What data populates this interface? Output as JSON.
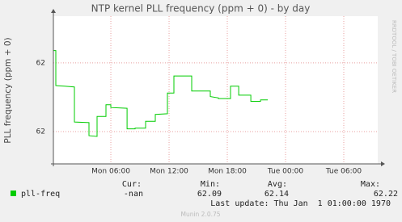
{
  "chart_data": {
    "type": "line",
    "title": "NTP kernel PLL frequency (ppm + 0) - by day",
    "y_label": "PLL frequency (ppm + 0)",
    "side_label": "RRDTOOL / TOBI OETIKER",
    "x": [
      0.08,
      0.33,
      0.33,
      1.25,
      2.25,
      2.25,
      3.75,
      3.75,
      4.58,
      4.58,
      5.5,
      5.5,
      6,
      6,
      7.67,
      7.67,
      8.5,
      8.5,
      9.58,
      9.58,
      10.58,
      10.58,
      11.83,
      11.83,
      12.5,
      12.5,
      14.33,
      14.33,
      16.25,
      16.25,
      17.08,
      17.08,
      18.33,
      18.33,
      19.17,
      19.17,
      20.42,
      20.42,
      21.42,
      21.42,
      22.17
    ],
    "series": [
      {
        "name": "pll-freq",
        "color": "#00cc00",
        "values": [
          62.218,
          62.218,
          62.167,
          62.166,
          62.165,
          62.114,
          62.113,
          62.094,
          62.093,
          62.122,
          62.122,
          62.139,
          62.139,
          62.135,
          62.134,
          62.104,
          62.104,
          62.105,
          62.105,
          62.115,
          62.115,
          62.125,
          62.126,
          62.156,
          62.156,
          62.181,
          62.181,
          62.159,
          62.159,
          62.151,
          62.149,
          62.148,
          62.148,
          62.166,
          62.166,
          62.153,
          62.153,
          62.144,
          62.144,
          62.146,
          62.146
        ],
        "cur": "-nan",
        "min": 62.09,
        "avg": 62.14,
        "max": 62.22
      }
    ],
    "legend_headers": [
      "Cur:",
      "Min:",
      "Avg:",
      "Max:"
    ],
    "xlim": [
      0.08,
      33.5
    ],
    "ylim": [
      62.053,
      62.268
    ],
    "xticks": [
      {
        "value": 6,
        "label": "Mon 06:00"
      },
      {
        "value": 12,
        "label": "Mon 12:00"
      },
      {
        "value": 18,
        "label": "Mon 18:00"
      },
      {
        "value": 24,
        "label": "Tue 00:00"
      },
      {
        "value": 30,
        "label": "Tue 06:00"
      }
    ],
    "yticks": [
      {
        "value": 62.1,
        "label": "62"
      },
      {
        "value": 62.2,
        "label": "62"
      }
    ],
    "grid": true,
    "last_update": "Last update: Thu Jan  1 01:00:00 1970",
    "footer": "Munin 2.0.75"
  }
}
